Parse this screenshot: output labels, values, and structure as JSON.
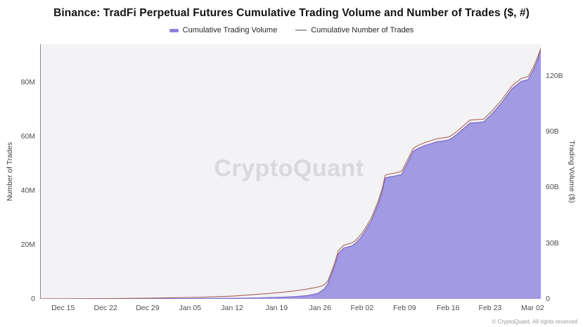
{
  "title": "Binance: TradFi Perpetual Futures Cumulative Trading Volume and Number of Trades ($, #)",
  "legend": [
    {
      "label": "Cumulative Trading Volume",
      "marker": "area-swatch"
    },
    {
      "label": "Cumulative Number of Trades",
      "marker": "line-swatch"
    }
  ],
  "watermark": "CryptoQuant",
  "footer": "© CryptoQuant. All rights reserved",
  "colors": {
    "plot_bg": "#f3f2f4",
    "area_fill": "#a29ae2",
    "area_stroke": "#7e72d2",
    "trades_line": "#a86460",
    "legend_swatch": "#8c82d9",
    "legend_line": "#a3a3a8"
  },
  "chart_data": {
    "type": "area",
    "title": "Binance: TradFi Perpetual Futures Cumulative Trading Volume and Number of Trades ($, #)",
    "x_axis": {
      "labels": [
        {
          "f": 0.046,
          "label": "Dec 15"
        },
        {
          "f": 0.131,
          "label": "Dec 22"
        },
        {
          "f": 0.215,
          "label": "Dec 29"
        },
        {
          "f": 0.3,
          "label": "Jan 05"
        },
        {
          "f": 0.384,
          "label": "Jan 12"
        },
        {
          "f": 0.473,
          "label": "Jan 19"
        },
        {
          "f": 0.56,
          "label": "Jan 26"
        },
        {
          "f": 0.644,
          "label": "Feb 02"
        },
        {
          "f": 0.729,
          "label": "Feb 09"
        },
        {
          "f": 0.816,
          "label": "Feb 16"
        },
        {
          "f": 0.9,
          "label": "Feb 23"
        },
        {
          "f": 0.985,
          "label": "Mar 02"
        }
      ]
    },
    "left_axis": {
      "title": "Number of Trades",
      "unit": "M",
      "max": 94,
      "ticks": [
        {
          "v": 0,
          "label": "0"
        },
        {
          "v": 20,
          "label": "20M"
        },
        {
          "v": 40,
          "label": "40M"
        },
        {
          "v": 60,
          "label": "60M"
        },
        {
          "v": 80,
          "label": "80M"
        }
      ]
    },
    "right_axis": {
      "title": "Trading Volume ($)",
      "unit": "B",
      "max": 137,
      "ticks": [
        {
          "v": 0,
          "label": "0"
        },
        {
          "v": 30,
          "label": "30B"
        },
        {
          "v": 60,
          "label": "60B"
        },
        {
          "v": 90,
          "label": "90B"
        },
        {
          "v": 120,
          "label": "120B"
        }
      ]
    },
    "series": [
      {
        "name": "Cumulative Trading Volume",
        "axis": "right",
        "style": "area",
        "points": [
          [
            0.0,
            0.0
          ],
          [
            0.08,
            0.02
          ],
          [
            0.16,
            0.05
          ],
          [
            0.24,
            0.1
          ],
          [
            0.32,
            0.15
          ],
          [
            0.384,
            0.25
          ],
          [
            0.42,
            0.4
          ],
          [
            0.45,
            0.6
          ],
          [
            0.48,
            0.85
          ],
          [
            0.51,
            1.2
          ],
          [
            0.535,
            1.8
          ],
          [
            0.555,
            3.0
          ],
          [
            0.567,
            5.3
          ],
          [
            0.574,
            8.0
          ],
          [
            0.581,
            13.0
          ],
          [
            0.588,
            18.0
          ],
          [
            0.595,
            24.3
          ],
          [
            0.606,
            27.4
          ],
          [
            0.615,
            28.0
          ],
          [
            0.623,
            28.6
          ],
          [
            0.63,
            30.0
          ],
          [
            0.64,
            33.0
          ],
          [
            0.647,
            35.7
          ],
          [
            0.661,
            42.0
          ],
          [
            0.675,
            51.0
          ],
          [
            0.683,
            58.0
          ],
          [
            0.689,
            65.0
          ],
          [
            0.697,
            65.6
          ],
          [
            0.707,
            66.0
          ],
          [
            0.722,
            67.0
          ],
          [
            0.733,
            73.0
          ],
          [
            0.745,
            79.5
          ],
          [
            0.755,
            81.0
          ],
          [
            0.768,
            82.5
          ],
          [
            0.78,
            83.5
          ],
          [
            0.792,
            84.5
          ],
          [
            0.805,
            85.0
          ],
          [
            0.816,
            85.5
          ],
          [
            0.825,
            87.0
          ],
          [
            0.834,
            89.0
          ],
          [
            0.845,
            91.5
          ],
          [
            0.858,
            94.6
          ],
          [
            0.872,
            94.8
          ],
          [
            0.886,
            95.2
          ],
          [
            0.904,
            100.0
          ],
          [
            0.923,
            106.0
          ],
          [
            0.942,
            113.0
          ],
          [
            0.961,
            117.0
          ],
          [
            0.975,
            118.0
          ],
          [
            0.985,
            123.0
          ],
          [
            0.993,
            128.0
          ],
          [
            1.0,
            134.0
          ]
        ]
      },
      {
        "name": "Cumulative Number of Trades",
        "axis": "left",
        "style": "line",
        "points": [
          [
            0.0,
            0.0
          ],
          [
            0.08,
            0.05
          ],
          [
            0.16,
            0.15
          ],
          [
            0.24,
            0.35
          ],
          [
            0.32,
            0.6
          ],
          [
            0.384,
            1.0
          ],
          [
            0.42,
            1.5
          ],
          [
            0.45,
            1.9
          ],
          [
            0.48,
            2.4
          ],
          [
            0.51,
            3.0
          ],
          [
            0.535,
            3.7
          ],
          [
            0.555,
            4.4
          ],
          [
            0.567,
            5.2
          ],
          [
            0.574,
            6.6
          ],
          [
            0.581,
            9.8
          ],
          [
            0.588,
            13.4
          ],
          [
            0.595,
            17.7
          ],
          [
            0.606,
            19.8
          ],
          [
            0.615,
            20.3
          ],
          [
            0.623,
            20.7
          ],
          [
            0.63,
            21.6
          ],
          [
            0.64,
            23.7
          ],
          [
            0.647,
            25.5
          ],
          [
            0.661,
            29.9
          ],
          [
            0.675,
            36.1
          ],
          [
            0.683,
            40.9
          ],
          [
            0.689,
            45.7
          ],
          [
            0.697,
            46.1
          ],
          [
            0.707,
            46.4
          ],
          [
            0.722,
            47.1
          ],
          [
            0.733,
            51.2
          ],
          [
            0.745,
            55.6
          ],
          [
            0.755,
            56.7
          ],
          [
            0.768,
            57.7
          ],
          [
            0.78,
            58.4
          ],
          [
            0.792,
            59.1
          ],
          [
            0.805,
            59.5
          ],
          [
            0.816,
            59.8
          ],
          [
            0.825,
            60.8
          ],
          [
            0.834,
            62.2
          ],
          [
            0.845,
            63.9
          ],
          [
            0.858,
            66.0
          ],
          [
            0.872,
            66.2
          ],
          [
            0.886,
            66.4
          ],
          [
            0.904,
            69.7
          ],
          [
            0.923,
            73.8
          ],
          [
            0.942,
            78.6
          ],
          [
            0.961,
            81.4
          ],
          [
            0.975,
            82.1
          ],
          [
            0.985,
            85.5
          ],
          [
            0.993,
            88.9
          ],
          [
            1.0,
            92.5
          ]
        ]
      }
    ]
  }
}
